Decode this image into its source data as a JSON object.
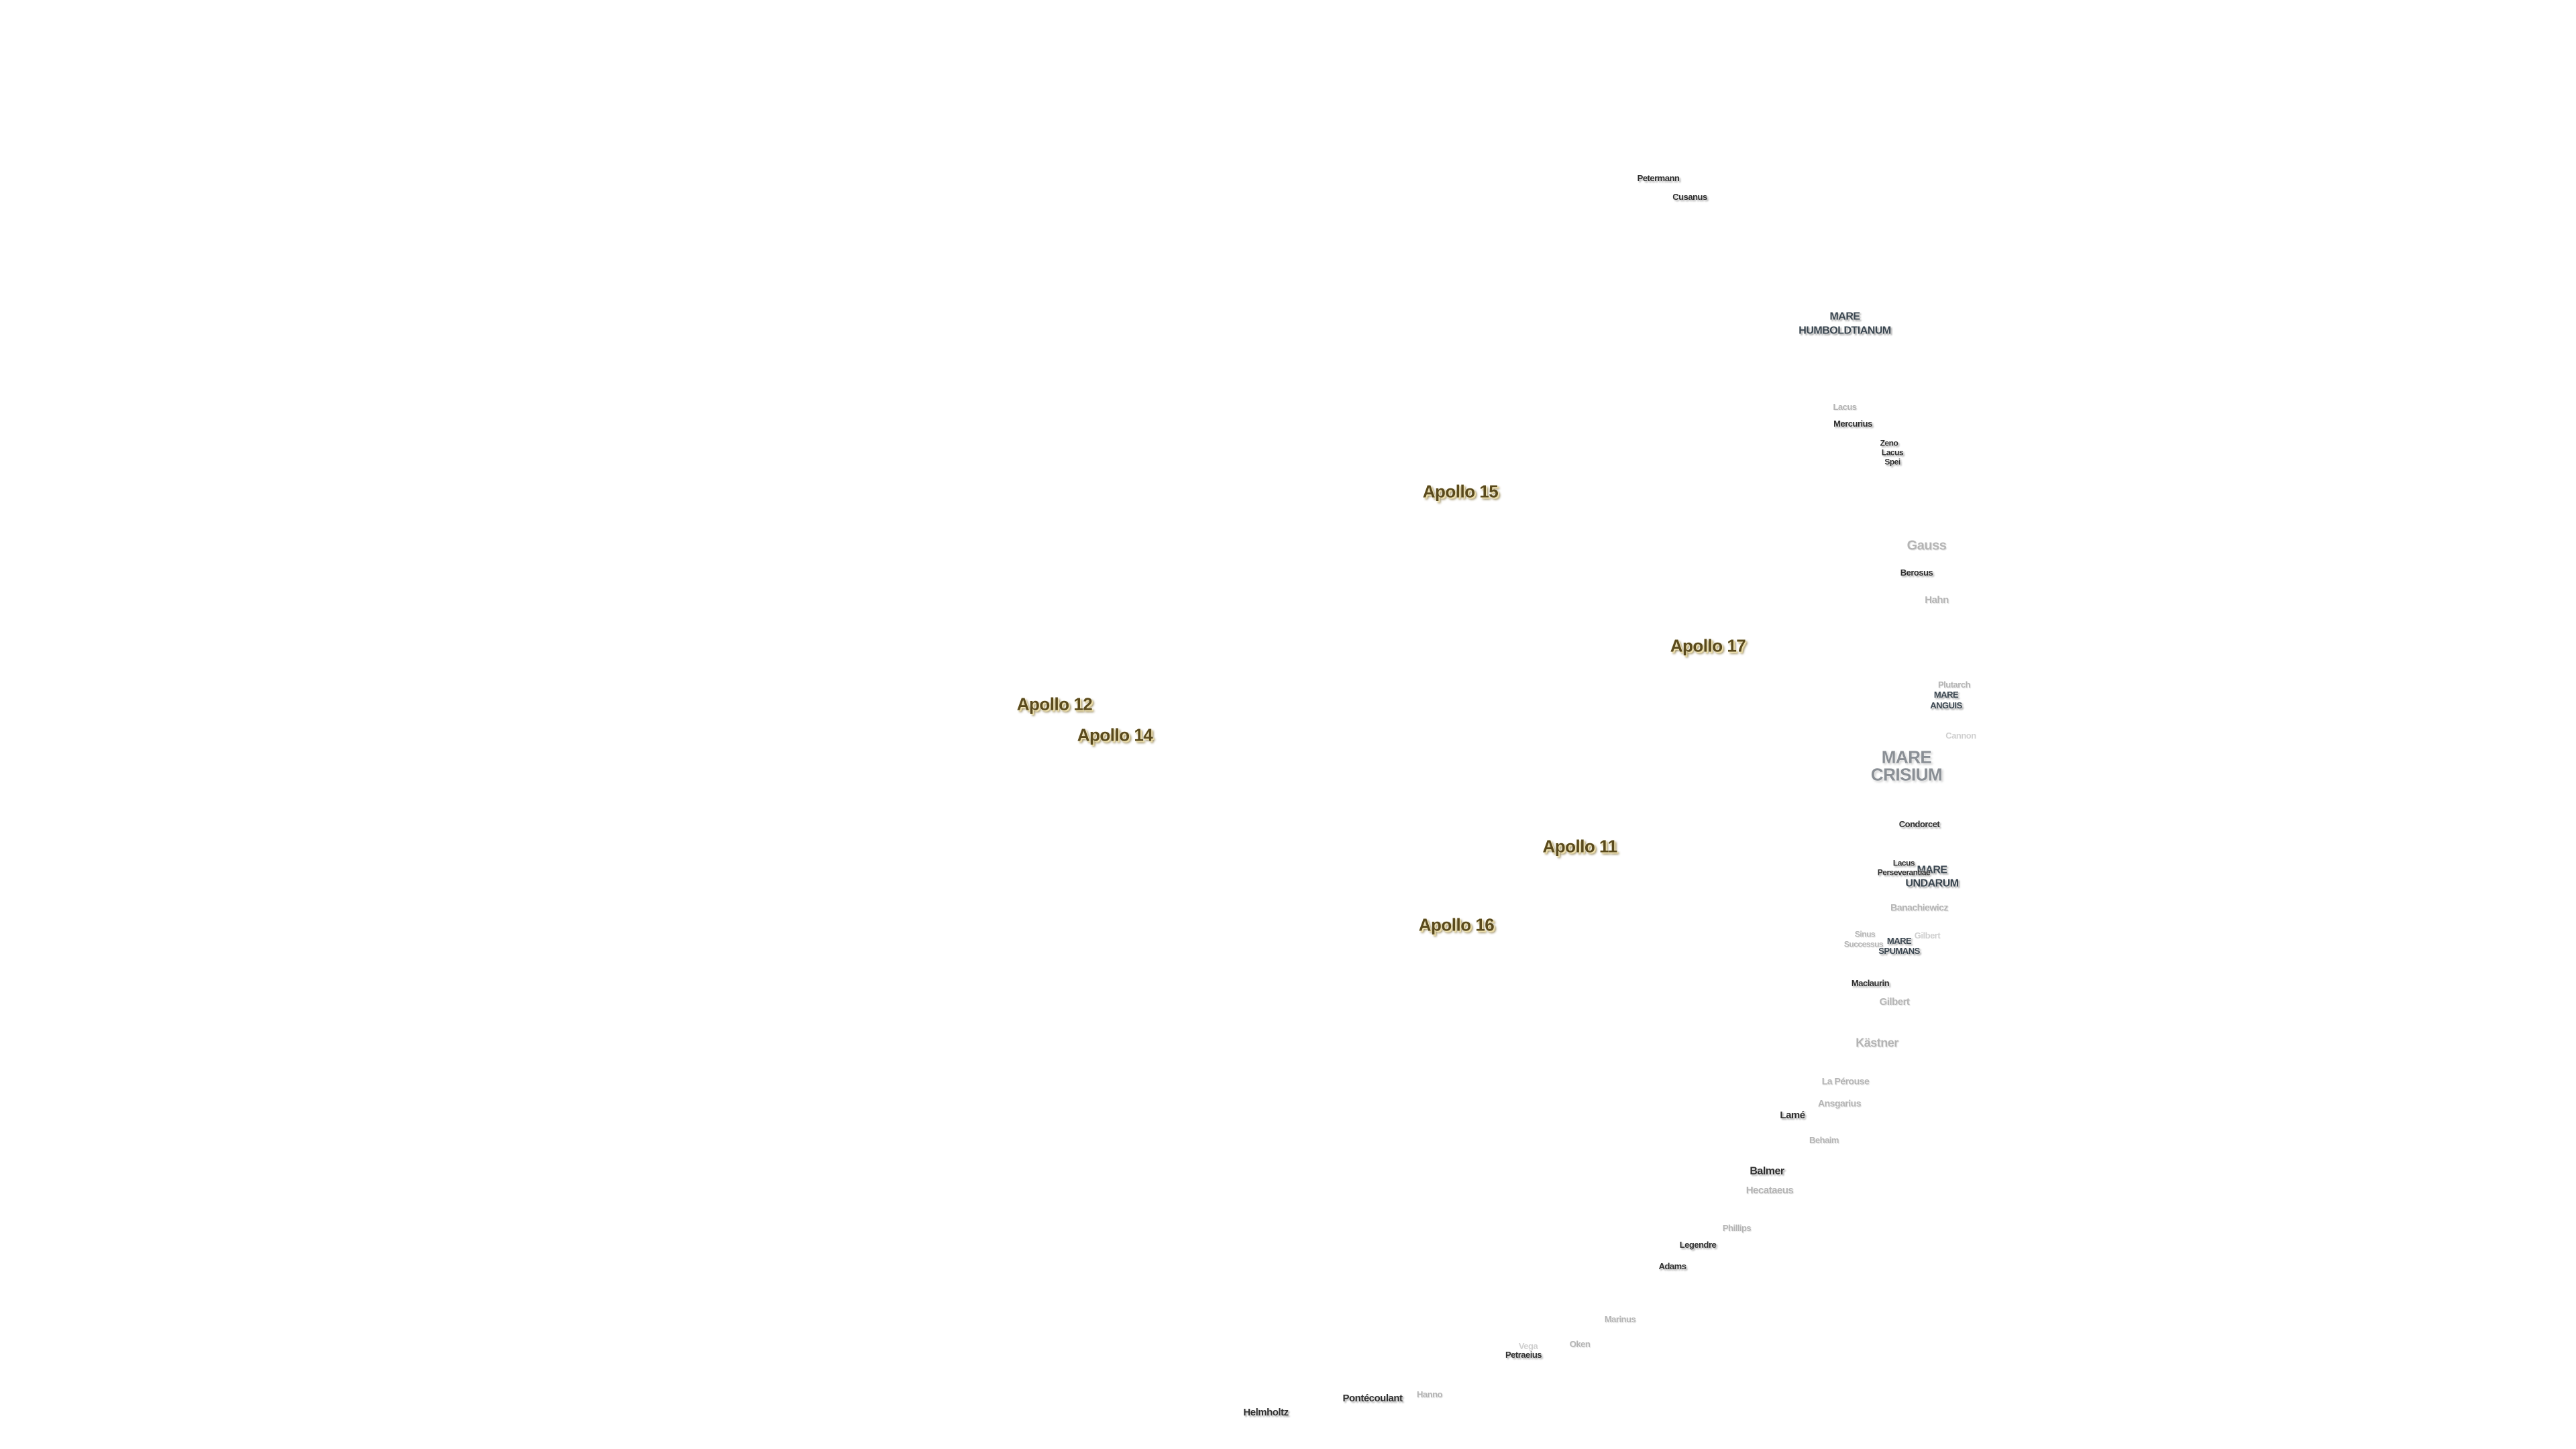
{
  "apollo_sites": {
    "apollo_15": "Apollo 15",
    "apollo_17": "Apollo 17",
    "apollo_12": "Apollo 12",
    "apollo_14": "Apollo 14",
    "apollo_11": "Apollo 11",
    "apollo_16": "Apollo 16"
  },
  "maria": {
    "mare_humboldtianum_1": "MARE",
    "mare_humboldtianum_2": "HUMBOLDTIANUM",
    "mare_anguis_1": "MARE",
    "mare_anguis_2": "ANGUIS",
    "mare_crisium_1": "MARE",
    "mare_crisium_2": "CRISIUM",
    "mare_undarum_1": "MARE",
    "mare_undarum_2": "UNDARUM",
    "mare_spumans_1": "MARE",
    "mare_spumans_2": "SPUMANS"
  },
  "craters": {
    "petermann": "Petermann",
    "cusanus": "Cusanus",
    "lacus_1": "Lacus",
    "mercurius": "Mercurius",
    "zeno": "Zeno",
    "lacus_spei_1": "Lacus",
    "lacus_spei_2": "Spei",
    "gauss": "Gauss",
    "berosus": "Berosus",
    "hahn": "Hahn",
    "plutarch": "Plutarch",
    "cannon": "Cannon",
    "condorcet": "Condorcet",
    "lacus_perseverantiae_1": "Lacus",
    "lacus_perseverantiae_2": "Perseverantiae",
    "banachiewicz": "Banachiewicz",
    "sinus_successus_1": "Sinus",
    "sinus_successus_2": "Successus",
    "gilbert_far": "Gilbert",
    "maclaurin": "Maclaurin",
    "gilbert": "Gilbert",
    "kastner": "Kästner",
    "la_perouse": "La Pérouse",
    "ansgarius": "Ansgarius",
    "lame": "Lamé",
    "behaim": "Behaim",
    "balmer": "Balmer",
    "hecataeus": "Hecataeus",
    "phillips": "Phillips",
    "legendre": "Legendre",
    "adams": "Adams",
    "marinus": "Marinus",
    "vega": "Vega",
    "oken": "Oken",
    "petrarchia": "Petraeius",
    "hanno": "Hanno",
    "pontecoulant": "Pontécoulant",
    "helmholtz": "Helmholtz"
  }
}
